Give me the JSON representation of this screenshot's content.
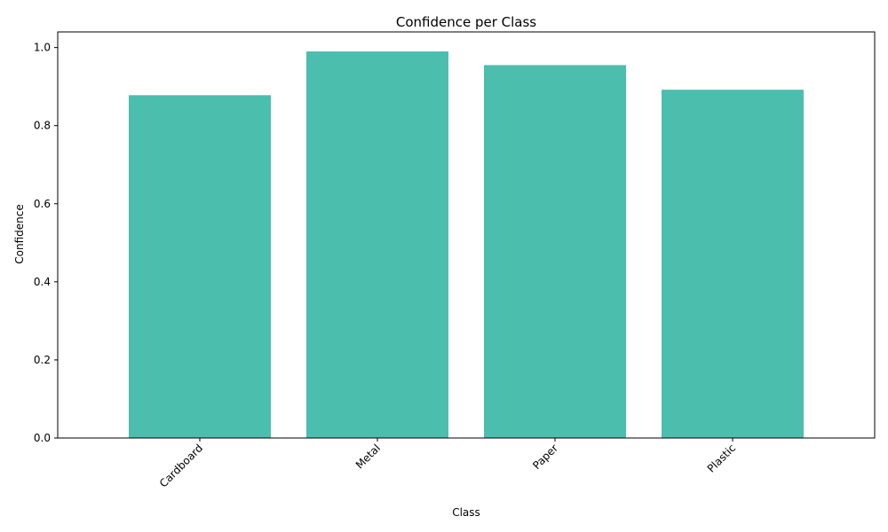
{
  "chart_data": {
    "type": "bar",
    "title": "Confidence per Class",
    "xlabel": "Class",
    "ylabel": "Confidence",
    "categories": [
      "Cardboard",
      "Metal",
      "Paper",
      "Plastic"
    ],
    "values": [
      0.878,
      0.99,
      0.955,
      0.892
    ],
    "ylim": [
      0,
      1.04
    ],
    "yticks": [
      0.0,
      0.2,
      0.4,
      0.6,
      0.8,
      1.0
    ],
    "ytick_labels": [
      "0.0",
      "0.2",
      "0.4",
      "0.6",
      "0.8",
      "1.0"
    ],
    "xtick_rotation": "45 degrees",
    "grid": false,
    "legend": false,
    "bar_color": "#4bbeae"
  }
}
